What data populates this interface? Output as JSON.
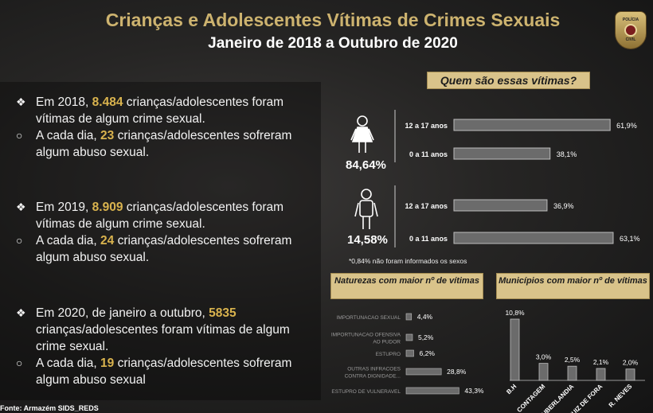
{
  "header": {
    "title": "Crianças e Adolescentes Vítimas de Crimes Sexuais",
    "subtitle": "Janeiro de 2018 a Outubro de 2020"
  },
  "badge": {
    "top": "POLÍCIA",
    "bottom": "CIVIL"
  },
  "left": {
    "y2018": {
      "a": "Em 2018, ",
      "count": "8.484",
      "b": " crianças/adolescentes foram vítimas de algum crime sexual.",
      "c": "A cada dia, ",
      "day": "23",
      "d": " crianças/adolescentes sofreram algum abuso sexual."
    },
    "y2019": {
      "a": "Em 2019, ",
      "count": "8.909",
      "b": " crianças/adolescentes foram vítimas de algum crime sexual.",
      "c": "A cada dia, ",
      "day": "24",
      "d": " crianças/adolescentes sofreram algum abuso sexual."
    },
    "y2020": {
      "a": "Em 2020, de janeiro a outubro, ",
      "count": "5835",
      "b": " crianças/adolescentes foram vítimas de algum crime sexual.",
      "c": "A cada dia, ",
      "day": "19",
      "d": " crianças/adolescentes sofreram algum abuso sexual"
    }
  },
  "source": "Fonte: Armazém SIDS_REDS",
  "victims": {
    "title": "Quem são essas vítimas?",
    "female_pct": "84,64%",
    "male_pct": "14,58%",
    "footnote": "*0,84% não foram informados os sexos"
  },
  "naturezas_title": "Naturezas com maior nº de vítimas",
  "municipios_title": "Municípios com maior nº de vítimas",
  "colors": {
    "bar": "#6b6b6b",
    "bar_border": "#bdbdbd",
    "gold": "#d9c38a",
    "highlight": "#d9b34e"
  },
  "chart_data": [
    {
      "type": "bar",
      "orientation": "horizontal",
      "group": "female",
      "categories": [
        "12 a 17 anos",
        "0 a 11 anos"
      ],
      "values": [
        61.9,
        38.1
      ],
      "labels": [
        "61,9%",
        "38,1%"
      ],
      "xlim": [
        0,
        65
      ]
    },
    {
      "type": "bar",
      "orientation": "horizontal",
      "group": "male",
      "categories": [
        "12 a 17 anos",
        "0 a 11 anos"
      ],
      "values": [
        36.9,
        63.1
      ],
      "labels": [
        "36,9%",
        "63,1%"
      ],
      "xlim": [
        0,
        65
      ]
    },
    {
      "type": "bar",
      "orientation": "horizontal",
      "title": "Naturezas com maior nº de vítimas",
      "categories": [
        "IMPORTUNACAO SEXUAL",
        "IMPORTUNACAO OFENSIVA AO PUDOR",
        "ESTUPRO",
        "OUTRAS INFRACOES CONTRA DIGNIDADE...",
        "ESTUPRO DE VULNERAVEL"
      ],
      "values": [
        4.4,
        5.2,
        6.2,
        28.8,
        43.3
      ],
      "labels": [
        "4,4%",
        "5,2%",
        "6,2%",
        "28,8%",
        "43,3%"
      ],
      "xlim": [
        0,
        45
      ]
    },
    {
      "type": "bar",
      "orientation": "vertical",
      "title": "Municípios com maior nº de vítimas",
      "categories": [
        "B.H",
        "CONTAGEM",
        "UBERLANDIA",
        "JUIZ DE FORA",
        "R. NEVES"
      ],
      "values": [
        10.8,
        3.0,
        2.5,
        2.1,
        2.0
      ],
      "labels": [
        "10,8%",
        "3,0%",
        "2,5%",
        "2,1%",
        "2,0%"
      ],
      "ylim": [
        0,
        11
      ]
    }
  ]
}
